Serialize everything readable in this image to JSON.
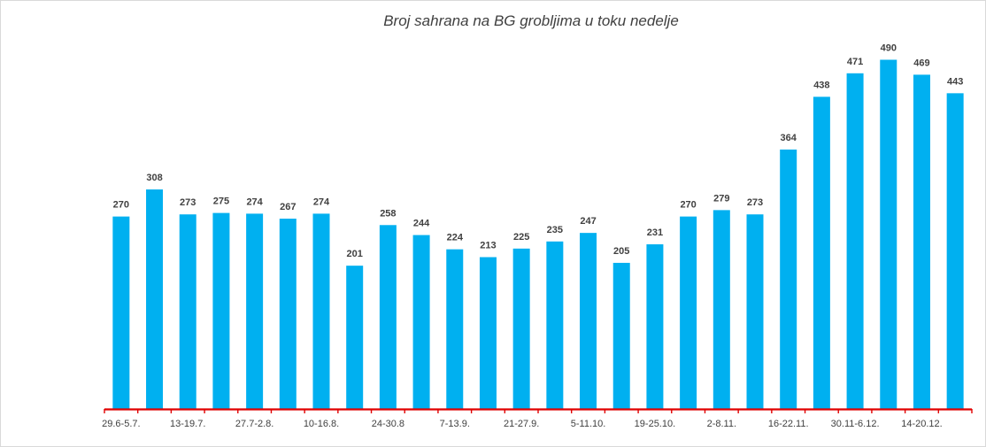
{
  "chart_data": {
    "type": "bar",
    "title": "Broj sahrana na BG grobljima u toku nedelje",
    "xlabel": "",
    "ylabel": "",
    "ylim": [
      0,
      500
    ],
    "grid": false,
    "legend": "none",
    "bar_color": "#00b0f0",
    "axis_color": "#e00000",
    "tick_labels": [
      "29.6-5.7.",
      "13-19.7.",
      "27.7-2.8.",
      "10-16.8.",
      "24-30.8",
      "7-13.9.",
      "21-27.9.",
      "5-11.10.",
      "19-25.10.",
      "2-8.11.",
      "16-22.11.",
      "30.11-6.12.",
      "14-20.12."
    ],
    "values": [
      270,
      308,
      273,
      275,
      274,
      267,
      274,
      201,
      258,
      244,
      224,
      213,
      225,
      235,
      247,
      205,
      231,
      270,
      279,
      273,
      364,
      438,
      471,
      490,
      469,
      443
    ]
  }
}
